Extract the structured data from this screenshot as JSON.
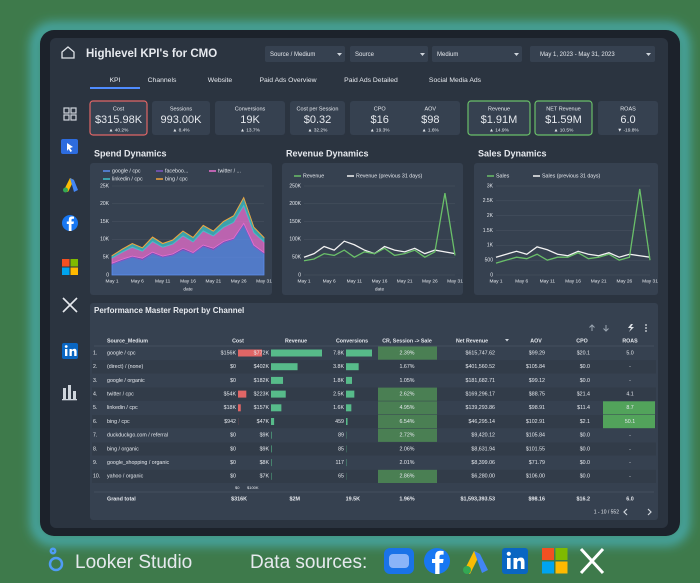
{
  "header": {
    "title": "Highlevel KPI's for CMO",
    "filters": [
      "Source / Medium",
      "Source",
      "Medium"
    ],
    "date_range": "May 1, 2023 - May 31, 2023"
  },
  "tabs": [
    "KPI",
    "Channels",
    "Website",
    "Paid Ads Overview",
    "Paid Ads Detailed",
    "Social Media Ads"
  ],
  "kpis": [
    {
      "label": "Cost",
      "value": "$315.98K",
      "change": "▲ 40.2%",
      "change_color": "#e06666",
      "border": "#e06666"
    },
    {
      "label": "Sessions",
      "value": "993.00K",
      "change": "▲ 8.4%",
      "change_color": "#57bb8a",
      "border": null
    },
    {
      "label": "Conversions",
      "value": "19K",
      "change": "▲ 13.7%",
      "change_color": "#57bb8a",
      "border": null
    },
    {
      "label": "Cost per Session",
      "value": "$0.32",
      "change": "▲ 32.2%",
      "change_color": "#e06666",
      "border": null
    },
    {
      "label": "CPO",
      "value": "$16",
      "change": "▲ 19.3%",
      "change_color": "#e06666",
      "border": null
    },
    {
      "label": "AOV",
      "value": "$98",
      "change": "▲ 1.6%",
      "change_color": "#57bb8a",
      "border": null
    },
    {
      "label": "Revenue",
      "value": "$1.91M",
      "change": "▲ 14.9%",
      "change_color": "#57bb8a",
      "border": "#6abf69"
    },
    {
      "label": "NET Revenue",
      "value": "$1.59M",
      "change": "▲ 10.5%",
      "change_color": "#57bb8a",
      "border": "#6abf69"
    },
    {
      "label": "ROAS",
      "value": "6.0",
      "change": "▼ -19.8%",
      "change_color": "#e06666",
      "border": null
    }
  ],
  "charts": [
    {
      "type": "stacked_area",
      "title": "Spend Dynamics",
      "x_label": "date",
      "ylim": [
        0,
        25000
      ],
      "yticks": [
        0,
        {
          "value": 5000,
          "label": "5K"
        },
        {
          "value": 10000,
          "label": "10K"
        },
        {
          "value": 15000,
          "label": "15K"
        },
        {
          "value": 20000,
          "label": "20K"
        },
        {
          "value": 25000,
          "label": "25K"
        }
      ],
      "xticks": [
        "May 1",
        "May 6",
        "May 11",
        "May 16",
        "May 21",
        "May 26",
        "May 31"
      ],
      "series": [
        {
          "name": "google / cpc",
          "color": "#5b8def",
          "values": [
            3000,
            4000,
            5000,
            4200,
            6000,
            5000,
            5500,
            7000,
            6000,
            8000,
            7000,
            9000,
            10000,
            14000,
            8000,
            6000
          ]
        },
        {
          "name": "faceboo...",
          "color": "#7e57c2",
          "values": [
            300,
            400,
            300,
            500,
            400,
            300,
            400,
            500,
            300,
            400,
            500,
            400,
            300,
            500,
            400,
            300
          ]
        },
        {
          "name": "twitter / ...",
          "color": "#e86fcf",
          "values": [
            1500,
            2000,
            2500,
            2000,
            3000,
            2500,
            2800,
            3500,
            3000,
            4000,
            3500,
            4000,
            4500,
            5000,
            3500,
            3000
          ]
        },
        {
          "name": "linkedin / cpc",
          "color": "#3fc1c9",
          "values": [
            600,
            800,
            1000,
            900,
            1200,
            1000,
            1100,
            1300,
            1200,
            1500,
            1300,
            1600,
            1800,
            2200,
            1500,
            1200
          ]
        },
        {
          "name": "bing / cpc",
          "color": "#f2a33a",
          "values": [
            50,
            60,
            80,
            70,
            90,
            80,
            70,
            60,
            80,
            70,
            65,
            75,
            60,
            70,
            65,
            60
          ]
        }
      ]
    },
    {
      "type": "line",
      "title": "Revenue Dynamics",
      "x_label": "date",
      "ylim": [
        0,
        250000
      ],
      "yticks": [
        0,
        {
          "value": 50000,
          "label": "50K"
        },
        {
          "value": 100000,
          "label": "100K"
        },
        {
          "value": 150000,
          "label": "150K"
        },
        {
          "value": 200000,
          "label": "200K"
        },
        {
          "value": 250000,
          "label": "250K"
        }
      ],
      "xticks": [
        "May 1",
        "May 6",
        "May 11",
        "May 16",
        "May 21",
        "May 26",
        "May 31"
      ],
      "series": [
        {
          "name": "Revenue",
          "color": "#6abf69",
          "values": [
            40000,
            45000,
            60000,
            55000,
            70000,
            50000,
            65000,
            60000,
            75000,
            55000,
            60000,
            70000,
            50000,
            65000,
            230000,
            55000
          ]
        },
        {
          "name": "Revenue (previous 31 days)",
          "color": "#f2f2f2",
          "values": [
            50000,
            60000,
            80000,
            70000,
            95000,
            85000,
            70000,
            60000,
            80000,
            70000,
            65000,
            75000,
            60000,
            70000,
            65000,
            60000
          ]
        }
      ]
    },
    {
      "type": "line",
      "title": "Sales Dynamics",
      "x_label": null,
      "ylim": [
        0,
        3000
      ],
      "yticks": [
        0,
        500,
        {
          "value": 1000,
          "label": "1K"
        },
        {
          "value": 1500,
          "label": "1.5K"
        },
        {
          "value": 2000,
          "label": "2K"
        },
        {
          "value": 2500,
          "label": "2.5K"
        },
        {
          "value": 3000,
          "label": "3K"
        }
      ],
      "xticks": [
        "May 1",
        "May 6",
        "May 11",
        "May 16",
        "May 21",
        "May 26",
        "May 31"
      ],
      "series": [
        {
          "name": "Sales",
          "color": "#6abf69",
          "values": [
            400,
            500,
            600,
            550,
            700,
            500,
            600,
            600,
            750,
            550,
            600,
            700,
            500,
            600,
            2900,
            500
          ]
        },
        {
          "name": "Sales (previous 31 days)",
          "color": "#f2f2f2",
          "values": [
            600,
            700,
            800,
            700,
            950,
            850,
            700,
            650,
            800,
            700,
            650,
            750,
            600,
            700,
            650,
            600
          ]
        }
      ]
    }
  ],
  "table": {
    "title": "Performance Master Report by Channel",
    "columns": [
      "Source_Medium",
      "Cost",
      "Revenue",
      "Conversions",
      "CR, Session -> Sale",
      "Net Revenue",
      "AOV",
      "CPO",
      "ROAS"
    ],
    "rows": [
      [
        "1.",
        "google / cpc",
        "$156K",
        "$772K",
        "7.8K",
        "2.39%",
        "$615,747.62",
        "$99.29",
        "$20.1",
        "5.0"
      ],
      [
        "2.",
        "(direct) / (none)",
        "$0",
        "$402K",
        "3.8K",
        "1.67%",
        "$401,560.52",
        "$105.84",
        "$0.0",
        "-"
      ],
      [
        "3.",
        "google / organic",
        "$0",
        "$182K",
        "1.8K",
        "1.05%",
        "$181,682.71",
        "$99.12",
        "$0.0",
        "-"
      ],
      [
        "4.",
        "twitter / cpc",
        "$54K",
        "$223K",
        "2.5K",
        "2.62%",
        "$169,296.17",
        "$88.75",
        "$21.4",
        "4.1"
      ],
      [
        "5.",
        "linkedin / cpc",
        "$18K",
        "$157K",
        "1.6K",
        "4.95%",
        "$139,293.86",
        "$98.91",
        "$11.4",
        "8.7"
      ],
      [
        "6.",
        "bing / cpc",
        "$942",
        "$47K",
        "459",
        "6.54%",
        "$46,295.14",
        "$102.91",
        "$2.1",
        "50.1"
      ],
      [
        "7.",
        "duckduckgo.com / referral",
        "$0",
        "$9K",
        "89",
        "2.72%",
        "$9,420.12",
        "$105.84",
        "$0.0",
        "-"
      ],
      [
        "8.",
        "bing / organic",
        "$0",
        "$9K",
        "85",
        "2.06%",
        "$8,631.94",
        "$101.55",
        "$0.0",
        "-"
      ],
      [
        "9.",
        "google_shopping / organic",
        "$0",
        "$8K",
        "117",
        "2.01%",
        "$8,399.06",
        "$71.79",
        "$0.0",
        "-"
      ],
      [
        "10.",
        "yahoo / organic",
        "$0",
        "$7K",
        "65",
        "2.86%",
        "$6,280.00",
        "$106.00",
        "$0.0",
        "-"
      ]
    ],
    "scale_labels": [
      "$0",
      "$100K"
    ],
    "total": [
      "Grand total",
      "$316K",
      "$2M",
      "19.5K",
      "1.96%",
      "$1,593,393.53",
      "$98.16",
      "$16.2",
      "6.0"
    ],
    "pager": "1 - 10 / 552"
  },
  "footer": {
    "brand": "Looker Studio",
    "sources_label": "Data sources:"
  }
}
